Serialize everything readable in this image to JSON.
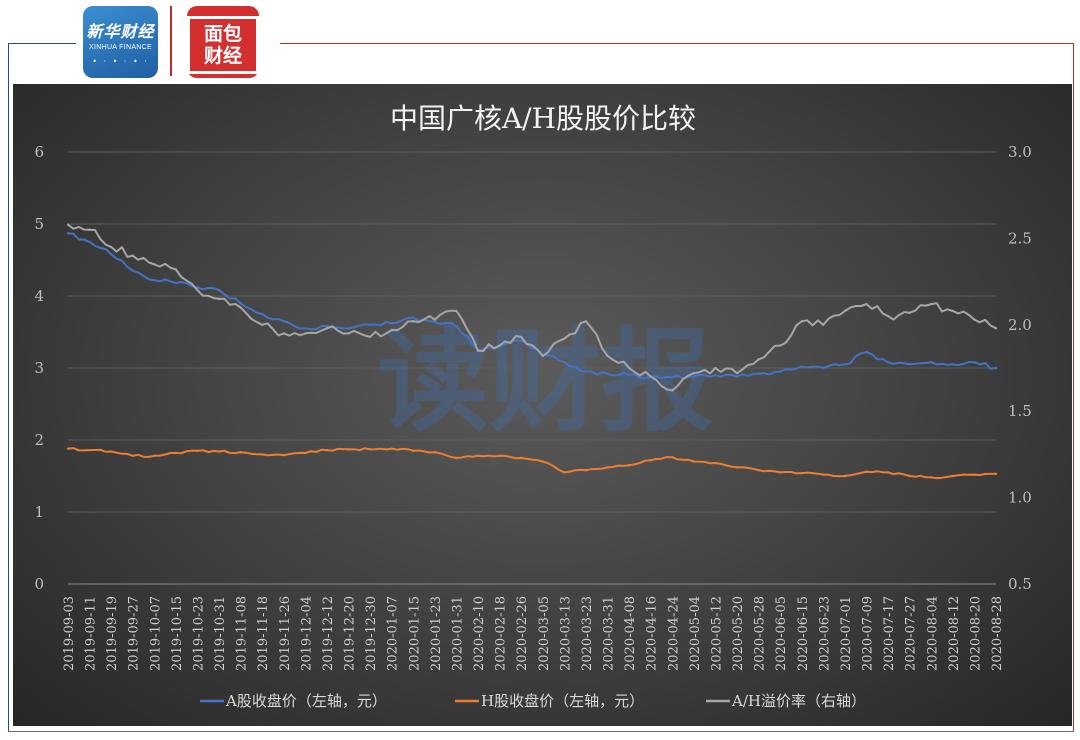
{
  "brand": {
    "logo1": {
      "title": "新华财经",
      "subtitle": "XINHUA FINANCE"
    },
    "logo2": {
      "title": "面包财经"
    }
  },
  "watermark": "读财报",
  "chart_data": {
    "type": "line",
    "title": "中国广核A/H股股价比较",
    "y_left": {
      "ticks": [
        "0",
        "1",
        "2",
        "3",
        "4",
        "5",
        "6"
      ],
      "ylim": [
        0,
        6
      ]
    },
    "y_right": {
      "ticks": [
        "0.5",
        "1.0",
        "1.5",
        "2.0",
        "2.5",
        "3.0"
      ],
      "ylim": [
        0.5,
        3.0
      ]
    },
    "grid": true,
    "legend_position": "bottom",
    "x_ticks": [
      "2019-09-03",
      "2019-09-11",
      "2019-09-19",
      "2019-09-27",
      "2019-10-07",
      "2019-10-15",
      "2019-10-23",
      "2019-10-31",
      "2019-11-08",
      "2019-11-18",
      "2019-11-26",
      "2019-12-04",
      "2019-12-12",
      "2019-12-20",
      "2019-12-30",
      "2020-01-07",
      "2020-01-15",
      "2020-01-23",
      "2020-01-31",
      "2020-02-10",
      "2020-02-18",
      "2020-02-26",
      "2020-03-05",
      "2020-03-13",
      "2020-03-23",
      "2020-03-31",
      "2020-04-08",
      "2020-04-16",
      "2020-04-24",
      "2020-05-04",
      "2020-05-12",
      "2020-05-20",
      "2020-05-28",
      "2020-06-05",
      "2020-06-15",
      "2020-06-23",
      "2020-07-01",
      "2020-07-09",
      "2020-07-17",
      "2020-07-27",
      "2020-08-04",
      "2020-08-12",
      "2020-08-20",
      "2020-08-28"
    ],
    "series": [
      {
        "name": "A股收盘价（左轴，元）",
        "axis": "left",
        "color": "#4472c4",
        "values": [
          4.87,
          4.75,
          4.58,
          4.35,
          4.22,
          4.18,
          4.12,
          4.08,
          3.9,
          3.75,
          3.65,
          3.55,
          3.58,
          3.55,
          3.6,
          3.62,
          3.7,
          3.64,
          3.58,
          3.25,
          3.3,
          3.38,
          3.18,
          3.08,
          2.95,
          2.92,
          2.9,
          2.88,
          2.87,
          2.88,
          2.9,
          2.88,
          2.92,
          2.95,
          3.02,
          3.0,
          3.05,
          3.22,
          3.08,
          3.05,
          3.08,
          3.05,
          3.08,
          3.0
        ]
      },
      {
        "name": "H股收盘价（左轴，元）",
        "axis": "left",
        "color": "#ed7d31",
        "values": [
          1.88,
          1.86,
          1.84,
          1.78,
          1.78,
          1.82,
          1.85,
          1.84,
          1.83,
          1.8,
          1.79,
          1.82,
          1.86,
          1.87,
          1.87,
          1.88,
          1.85,
          1.83,
          1.75,
          1.78,
          1.78,
          1.75,
          1.7,
          1.55,
          1.58,
          1.62,
          1.65,
          1.72,
          1.76,
          1.7,
          1.68,
          1.62,
          1.58,
          1.55,
          1.54,
          1.52,
          1.5,
          1.56,
          1.55,
          1.5,
          1.48,
          1.5,
          1.52,
          1.53
        ]
      },
      {
        "name": "A/H溢价率（右轴）",
        "axis": "right",
        "color": "#a6a6a6",
        "values": [
          2.58,
          2.55,
          2.45,
          2.4,
          2.35,
          2.32,
          2.2,
          2.15,
          2.1,
          2.0,
          1.95,
          1.95,
          1.98,
          1.95,
          1.93,
          1.97,
          2.02,
          2.03,
          2.08,
          1.85,
          1.88,
          1.93,
          1.82,
          1.92,
          2.02,
          1.82,
          1.75,
          1.7,
          1.62,
          1.72,
          1.75,
          1.72,
          1.8,
          1.88,
          2.02,
          2.0,
          2.08,
          2.12,
          2.05,
          2.07,
          2.12,
          2.08,
          2.03,
          1.98
        ]
      }
    ]
  }
}
